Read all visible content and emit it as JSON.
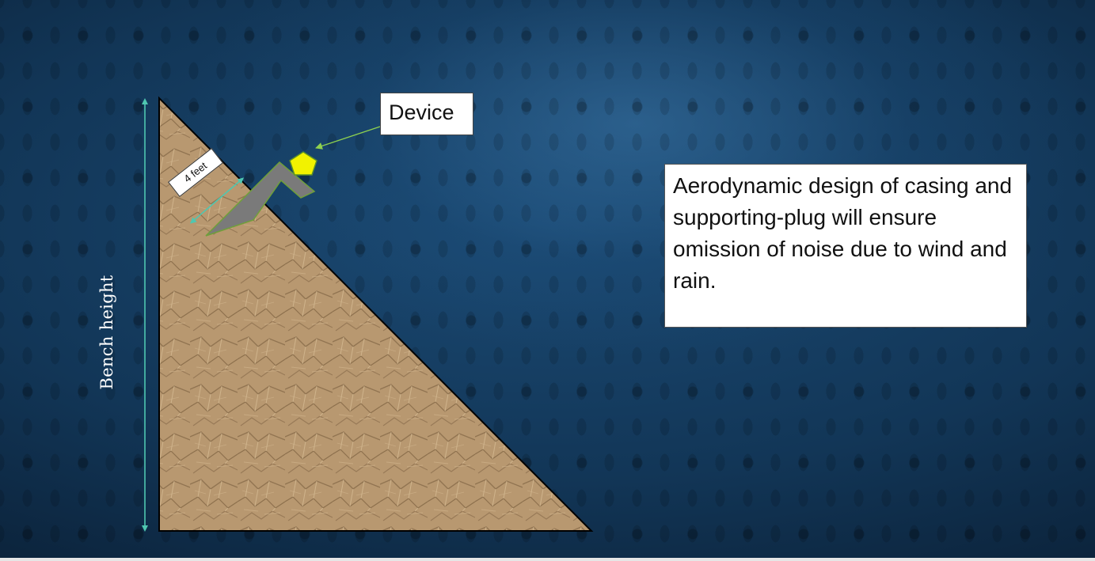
{
  "labels": {
    "bench_height": "Bench height",
    "device": "Device",
    "distance": "4 feet"
  },
  "description": "Aerodynamic design of casing and supporting-plug will ensure omission of noise due to wind and rain.",
  "colors": {
    "background": "#123657",
    "slope_fill": "#b89870",
    "dimension_arrow": "#4fc7b0",
    "casing": "#7a7a7a",
    "device": "#f2f200",
    "callout_line": "#8fd14f"
  },
  "icons": {
    "device": "pentagon-icon",
    "casing": "bent-casing-icon"
  }
}
